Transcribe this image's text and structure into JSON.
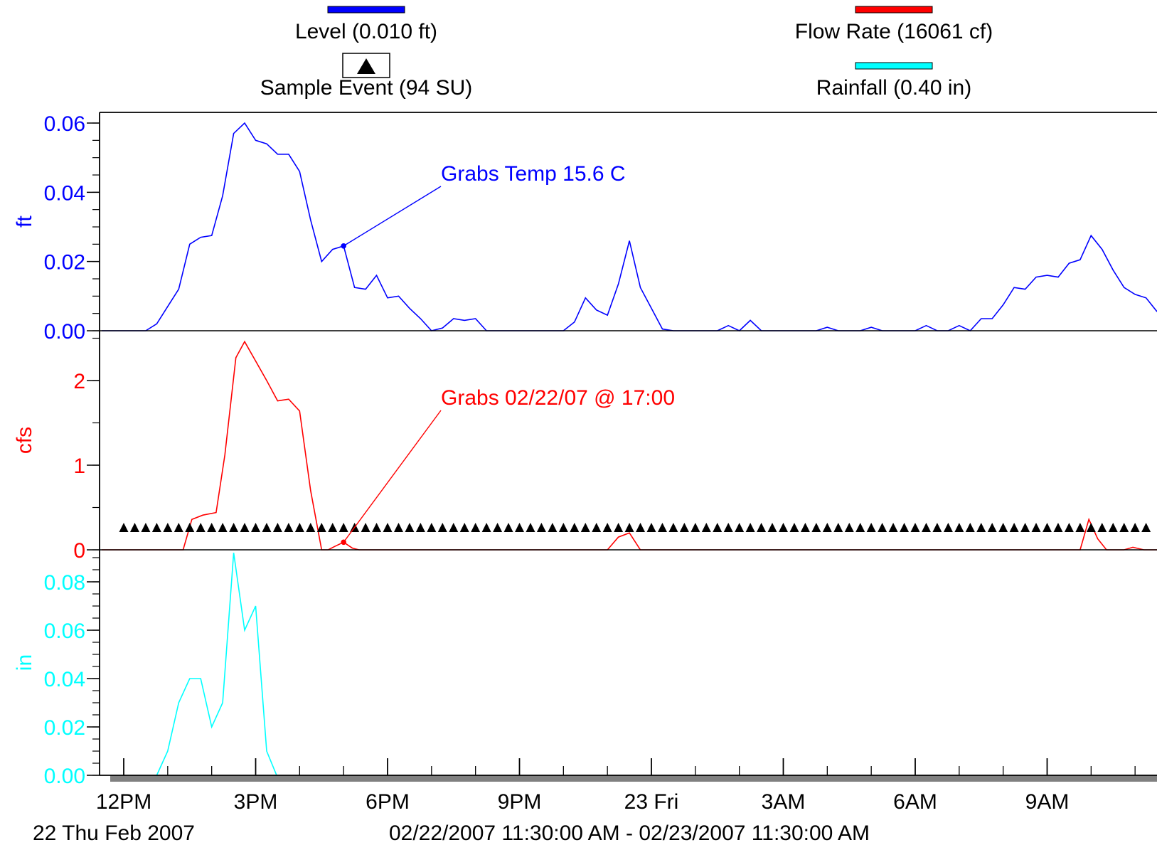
{
  "legend": [
    {
      "label": "Level (0.010 ft)",
      "color": "#0000ff",
      "swatch": "line"
    },
    {
      "label": "Flow Rate (16061 cf)",
      "color": "#ff0000",
      "swatch": "line"
    },
    {
      "label": "Sample Event (94 SU)",
      "color": "#000000",
      "swatch": "triangle"
    },
    {
      "label": "Rainfall (0.40 in)",
      "color": "#00ffff",
      "swatch": "line"
    }
  ],
  "chart_data": {
    "type": "line",
    "x_unit": "hours after 12PM on 22 Thu Feb 2007",
    "xlim": [
      -0.5,
      23.5
    ],
    "x_ticks": [
      {
        "x": 0,
        "label": "12PM"
      },
      {
        "x": 3,
        "label": "3PM"
      },
      {
        "x": 6,
        "label": "6PM"
      },
      {
        "x": 9,
        "label": "9PM"
      },
      {
        "x": 12,
        "label": "23 Fri"
      },
      {
        "x": 15,
        "label": "3AM"
      },
      {
        "x": 18,
        "label": "6AM"
      },
      {
        "x": 21,
        "label": "9AM"
      }
    ],
    "date_label": "22 Thu Feb 2007",
    "range_label": "02/22/2007 11:30:00 AM - 02/23/2007 11:30:00 AM",
    "panels": [
      {
        "name": "Level",
        "ylabel": "ft",
        "color": "#0000ff",
        "ylim": [
          0,
          0.062
        ],
        "ticks": [
          0.0,
          0.02,
          0.04,
          0.06
        ],
        "tick_labels": [
          "0.00",
          "0.02",
          "0.04",
          "0.06"
        ],
        "minor_step": 0.005,
        "annotation": {
          "text": "Grabs Temp 15.6 C",
          "x": 5.0,
          "y": 0.0245
        },
        "points": [
          [
            -0.5,
            0
          ],
          [
            0.25,
            0
          ],
          [
            0.5,
            0
          ],
          [
            0.75,
            0.002
          ],
          [
            1.0,
            0.007
          ],
          [
            1.25,
            0.012
          ],
          [
            1.5,
            0.025
          ],
          [
            1.75,
            0.027
          ],
          [
            2.0,
            0.0275
          ],
          [
            2.25,
            0.039
          ],
          [
            2.5,
            0.057
          ],
          [
            2.75,
            0.06
          ],
          [
            3.0,
            0.055
          ],
          [
            3.25,
            0.054
          ],
          [
            3.5,
            0.051
          ],
          [
            3.75,
            0.051
          ],
          [
            4.0,
            0.046
          ],
          [
            4.25,
            0.032
          ],
          [
            4.5,
            0.02
          ],
          [
            4.75,
            0.0235
          ],
          [
            5.0,
            0.0245
          ],
          [
            5.25,
            0.0125
          ],
          [
            5.5,
            0.012
          ],
          [
            5.75,
            0.016
          ],
          [
            6.0,
            0.0095
          ],
          [
            6.25,
            0.01
          ],
          [
            6.5,
            0.0065
          ],
          [
            6.75,
            0.0035
          ],
          [
            7.0,
            0
          ],
          [
            7.25,
            0.0008
          ],
          [
            7.5,
            0.0035
          ],
          [
            7.75,
            0.003
          ],
          [
            8.0,
            0.0035
          ],
          [
            8.25,
            0
          ],
          [
            9.0,
            0
          ],
          [
            10.0,
            0
          ],
          [
            10.25,
            0.0025
          ],
          [
            10.5,
            0.0095
          ],
          [
            10.75,
            0.006
          ],
          [
            11.0,
            0.0045
          ],
          [
            11.25,
            0.0135
          ],
          [
            11.5,
            0.026
          ],
          [
            11.75,
            0.0125
          ],
          [
            12.0,
            0.0065
          ],
          [
            12.25,
            0.0005
          ],
          [
            12.5,
            0
          ],
          [
            13.5,
            0
          ],
          [
            13.75,
            0.0015
          ],
          [
            14.0,
            0
          ],
          [
            14.25,
            0.003
          ],
          [
            14.5,
            0
          ],
          [
            15.0,
            0
          ],
          [
            15.75,
            0
          ],
          [
            16.0,
            0.001
          ],
          [
            16.25,
            0
          ],
          [
            16.75,
            0
          ],
          [
            17.0,
            0.001
          ],
          [
            17.25,
            0
          ],
          [
            17.75,
            0
          ],
          [
            18.0,
            0
          ],
          [
            18.25,
            0.0015
          ],
          [
            18.5,
            0
          ],
          [
            18.75,
            0
          ],
          [
            19.0,
            0.0015
          ],
          [
            19.25,
            0
          ],
          [
            19.5,
            0.0035
          ],
          [
            19.75,
            0.0035
          ],
          [
            20.0,
            0.0075
          ],
          [
            20.25,
            0.0125
          ],
          [
            20.5,
            0.012
          ],
          [
            20.75,
            0.0155
          ],
          [
            21.0,
            0.016
          ],
          [
            21.25,
            0.0155
          ],
          [
            21.5,
            0.0195
          ],
          [
            21.75,
            0.0205
          ],
          [
            22.0,
            0.0275
          ],
          [
            22.25,
            0.0235
          ],
          [
            22.5,
            0.0175
          ],
          [
            22.75,
            0.0125
          ],
          [
            23.0,
            0.0105
          ],
          [
            23.25,
            0.0095
          ],
          [
            23.5,
            0.0055
          ]
        ]
      },
      {
        "name": "Flow Rate",
        "ylabel": "cfs",
        "color": "#ff0000",
        "ylim": [
          0,
          2.5
        ],
        "ticks": [
          0,
          1,
          2
        ],
        "tick_labels": [
          "0",
          "1",
          "2"
        ],
        "minor_step": 0.5,
        "annotation": {
          "text": "Grabs 02/22/07 @ 17:00",
          "x": 5.0,
          "y": 0.09
        },
        "sample_event_y": 0.26,
        "sample_event_x_start": 0,
        "sample_event_x_end": 23.25,
        "sample_event_step": 0.25,
        "points": [
          [
            -0.5,
            0
          ],
          [
            1.0,
            0
          ],
          [
            1.35,
            0
          ],
          [
            1.55,
            0.36
          ],
          [
            1.8,
            0.41
          ],
          [
            2.1,
            0.44
          ],
          [
            2.3,
            1.12
          ],
          [
            2.55,
            2.27
          ],
          [
            2.75,
            2.46
          ],
          [
            3.0,
            2.23
          ],
          [
            3.25,
            2.0
          ],
          [
            3.5,
            1.76
          ],
          [
            3.75,
            1.78
          ],
          [
            4.0,
            1.64
          ],
          [
            4.25,
            0.7
          ],
          [
            4.5,
            0
          ],
          [
            4.65,
            0
          ],
          [
            4.8,
            0.04
          ],
          [
            5.0,
            0.09
          ],
          [
            5.2,
            0.02
          ],
          [
            5.35,
            0
          ],
          [
            11.0,
            0
          ],
          [
            11.25,
            0.15
          ],
          [
            11.5,
            0.2
          ],
          [
            11.75,
            0
          ],
          [
            21.75,
            0
          ],
          [
            21.95,
            0.36
          ],
          [
            22.15,
            0.13
          ],
          [
            22.35,
            0
          ],
          [
            22.75,
            0
          ],
          [
            22.95,
            0.03
          ],
          [
            23.2,
            0
          ],
          [
            23.5,
            0
          ]
        ]
      },
      {
        "name": "Rainfall",
        "ylabel": "in",
        "color": "#00ffff",
        "ylim": [
          0,
          0.095
        ],
        "ticks": [
          0.0,
          0.02,
          0.04,
          0.06,
          0.08
        ],
        "tick_labels": [
          "0.00",
          "0.02",
          "0.04",
          "0.06",
          "0.08"
        ],
        "minor_step": 0.005,
        "points": [
          [
            0.75,
            0
          ],
          [
            1.0,
            0.01
          ],
          [
            1.25,
            0.03
          ],
          [
            1.5,
            0.04
          ],
          [
            1.75,
            0.04
          ],
          [
            2.0,
            0.02
          ],
          [
            2.25,
            0.03
          ],
          [
            2.5,
            0.092
          ],
          [
            2.75,
            0.06
          ],
          [
            3.0,
            0.07
          ],
          [
            3.25,
            0.01
          ],
          [
            3.5,
            -0.001
          ]
        ]
      }
    ]
  }
}
